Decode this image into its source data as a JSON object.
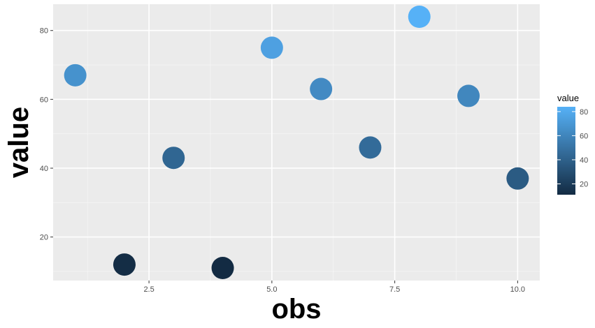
{
  "chart_data": {
    "type": "scatter",
    "xlabel": "obs",
    "ylabel": "value",
    "x": [
      1,
      2,
      3,
      4,
      5,
      6,
      7,
      8,
      9,
      10
    ],
    "y": [
      67,
      12,
      43,
      11,
      75,
      63,
      46,
      84,
      61,
      37
    ],
    "xlim": [
      0.55,
      10.45
    ],
    "ylim": [
      7.35,
      87.65
    ],
    "x_ticks": [
      "2.5",
      "5.0",
      "7.5",
      "10.0"
    ],
    "x_tick_values": [
      2.5,
      5.0,
      7.5,
      10.0
    ],
    "y_ticks": [
      "20",
      "40",
      "60",
      "80"
    ],
    "y_tick_values": [
      20,
      40,
      60,
      80
    ],
    "grid": true,
    "panel_background": "#ebebeb",
    "color_scale": {
      "title": "value",
      "low_color": "#132b43",
      "high_color": "#56b1f7",
      "range": [
        11,
        84
      ],
      "ticks": [
        "20",
        "40",
        "60",
        "80"
      ],
      "tick_values": [
        20,
        40,
        60,
        80
      ]
    },
    "legend_position": "right"
  }
}
